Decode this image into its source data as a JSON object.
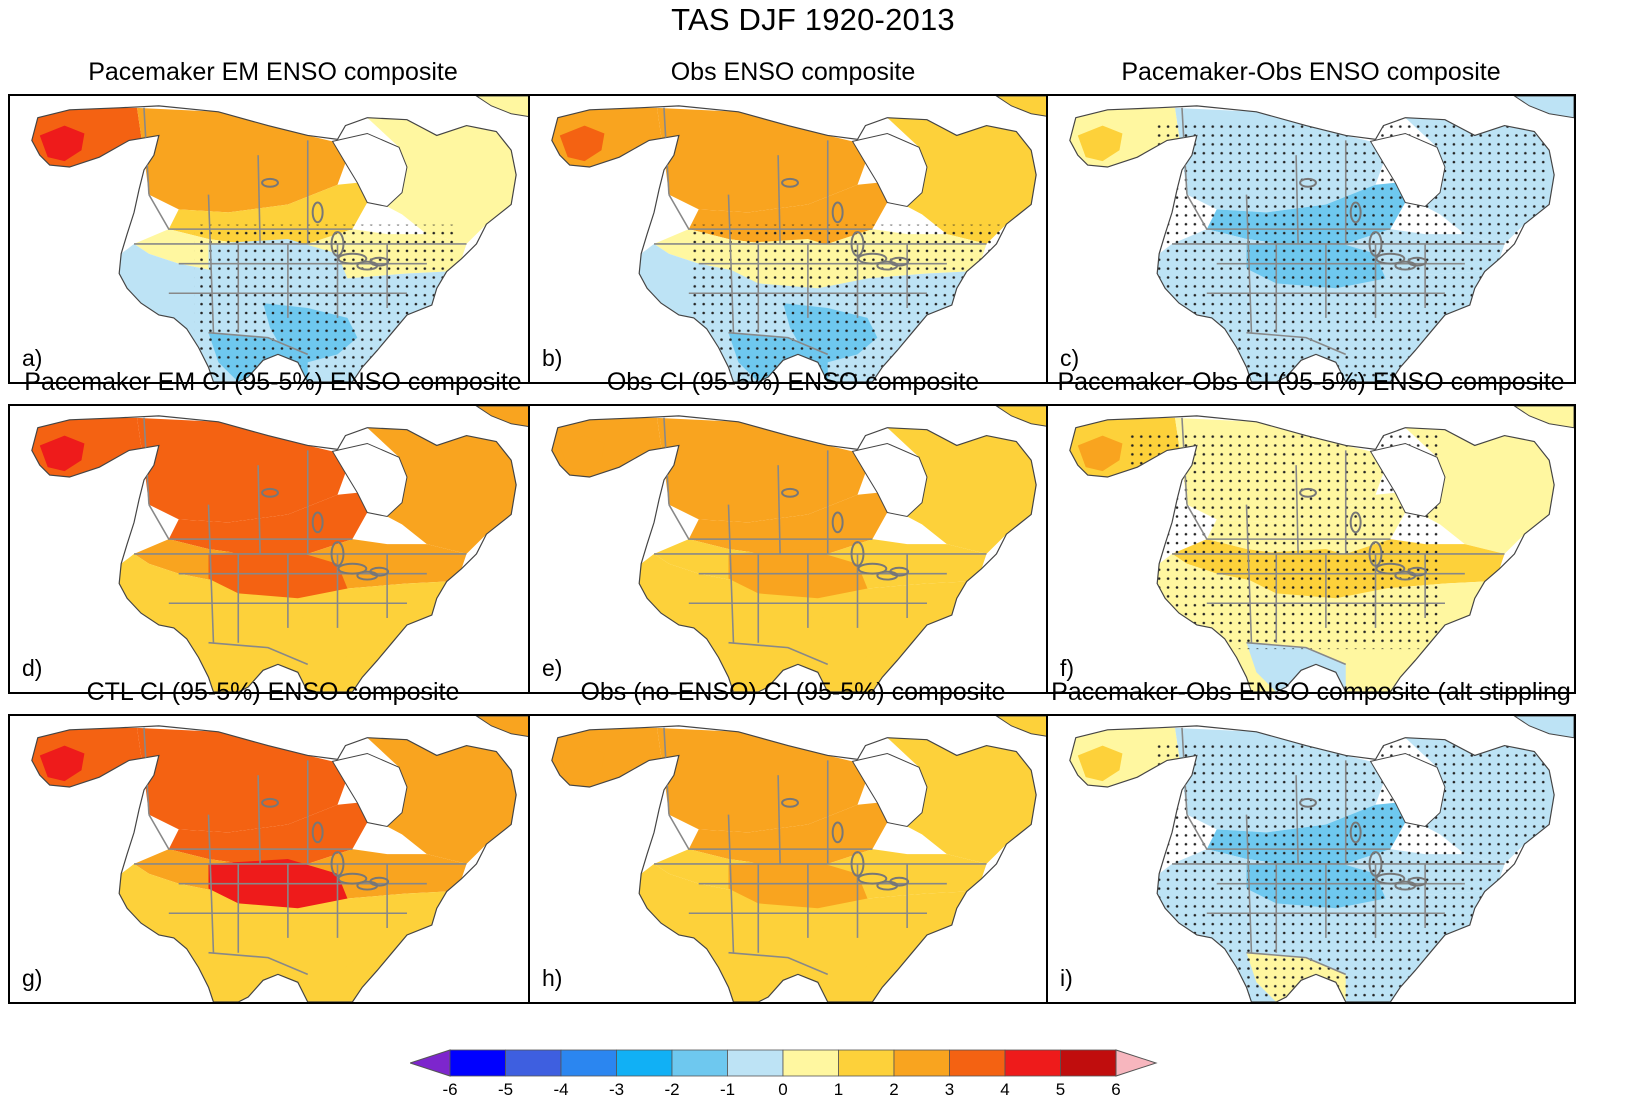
{
  "title": "TAS DJF 1920-2013",
  "panels": [
    {
      "title": "Pacemaker EM ENSO composite",
      "label": "a)",
      "scheme": "a"
    },
    {
      "title": "Obs ENSO composite",
      "label": "b)",
      "scheme": "b"
    },
    {
      "title": "Pacemaker-Obs ENSO composite",
      "label": "c)",
      "scheme": "c"
    },
    {
      "title": "Pacemaker EM CI (95-5%) ENSO composite",
      "label": "d)",
      "scheme": "d"
    },
    {
      "title": "Obs CI (95-5%) ENSO composite",
      "label": "e)",
      "scheme": "e"
    },
    {
      "title": "Pacemaker-Obs CI (95-5%) ENSO composite",
      "label": "f)",
      "scheme": "f"
    },
    {
      "title": "CTL CI (95-5%) ENSO composite",
      "label": "g)",
      "scheme": "g"
    },
    {
      "title": "Obs (no-ENSO) CI (95-5%) composite",
      "label": "h)",
      "scheme": "h"
    },
    {
      "title": "Pacemaker-Obs ENSO composite (alt stippling",
      "label": "i)",
      "scheme": "i"
    }
  ],
  "colorbar": {
    "ticks": [
      "-6",
      "-5",
      "-4",
      "-3",
      "-2",
      "-1",
      "0",
      "1",
      "2",
      "3",
      "4",
      "5",
      "6"
    ],
    "colors": [
      "#7d26cd",
      "#0000ff",
      "#3e5fe0",
      "#2b86f0",
      "#11b0f5",
      "#6ec8ef",
      "#bde3f5",
      "#fff7a0",
      "#fdd13a",
      "#f9a41f",
      "#f46212",
      "#ee1b1b",
      "#c00d0d",
      "#f7b6be"
    ]
  },
  "colors": {
    "border": "#888888",
    "coast": "#444444",
    "land_white": "#ffffff"
  }
}
